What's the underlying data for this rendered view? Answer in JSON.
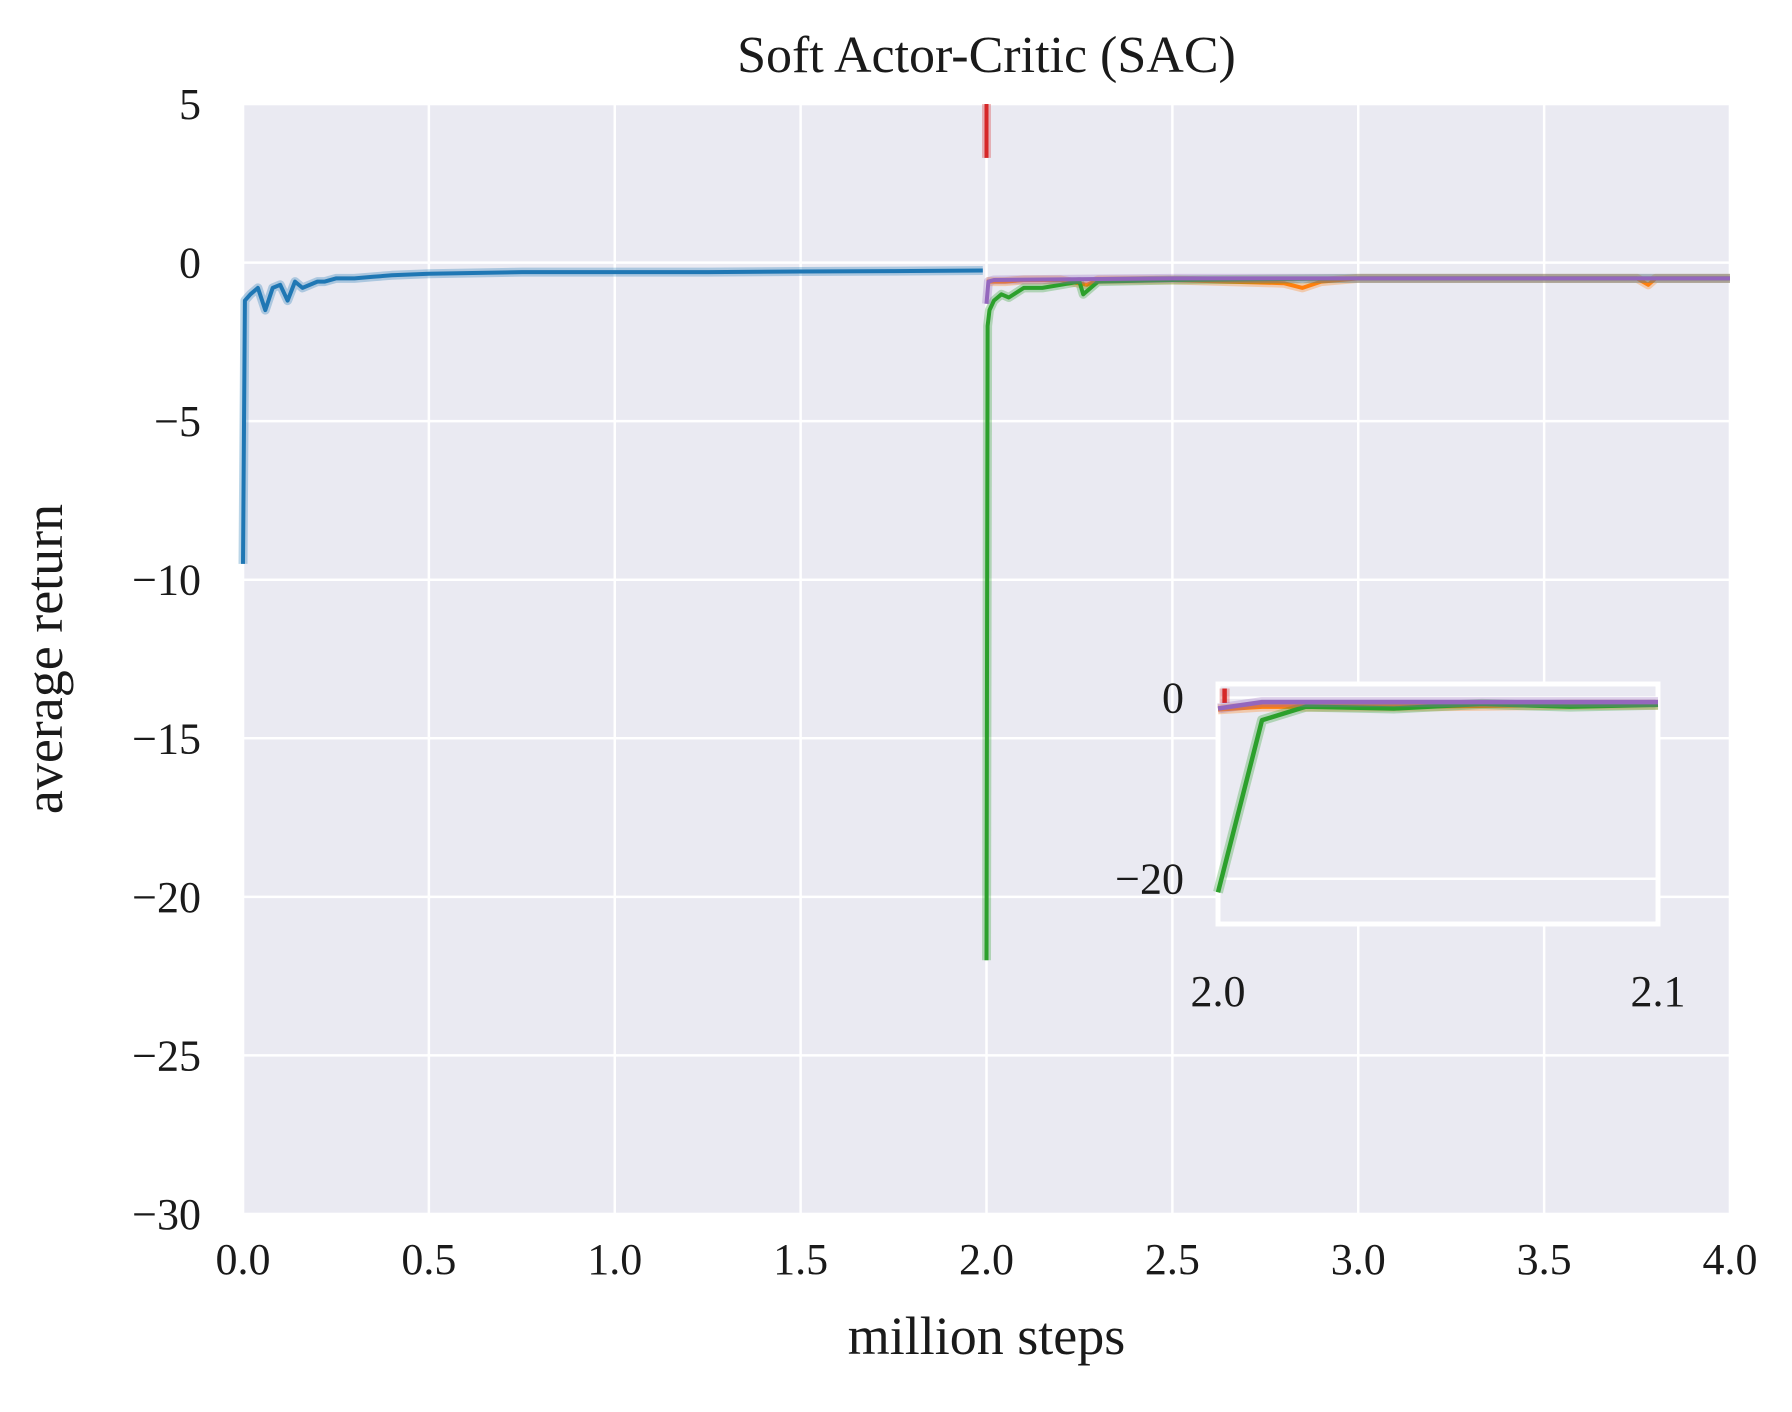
{
  "chart_data": {
    "type": "line",
    "title": "Soft Actor-Critic (SAC)",
    "xlabel": "million steps",
    "ylabel": "average return",
    "xlim": [
      0,
      4
    ],
    "ylim": [
      -30,
      5
    ],
    "xticks": [
      0.0,
      0.5,
      1.0,
      1.5,
      2.0,
      2.5,
      3.0,
      3.5,
      4.0
    ],
    "xtick_labels": [
      "0.0",
      "0.5",
      "1.0",
      "1.5",
      "2.0",
      "2.5",
      "3.0",
      "3.5",
      "4.0"
    ],
    "yticks": [
      5,
      0,
      -5,
      -10,
      -15,
      -20,
      -25,
      -30
    ],
    "ytick_labels": [
      "5",
      "0",
      "−5",
      "−10",
      "−15",
      "−20",
      "−25",
      "−30"
    ],
    "grid": true,
    "legend": "none",
    "background": "#eaeaf2",
    "series": [
      {
        "color": "#1f77b4",
        "x": [
          0.0,
          0.005,
          0.02,
          0.04,
          0.06,
          0.08,
          0.1,
          0.12,
          0.14,
          0.16,
          0.2,
          0.22,
          0.25,
          0.3,
          0.35,
          0.4,
          0.5,
          0.75,
          1.0,
          1.25,
          1.5,
          1.75,
          1.99
        ],
        "y": [
          -9.5,
          -1.2,
          -1.0,
          -0.8,
          -1.5,
          -0.8,
          -0.7,
          -1.2,
          -0.6,
          -0.8,
          -0.6,
          -0.6,
          -0.5,
          -0.5,
          -0.45,
          -0.4,
          -0.35,
          -0.3,
          -0.3,
          -0.3,
          -0.28,
          -0.27,
          -0.25
        ]
      },
      {
        "color": "#ff7f0e",
        "x": [
          2.0,
          2.02,
          2.05,
          2.1,
          2.2,
          2.27,
          2.3,
          2.5,
          2.8,
          2.85,
          2.9,
          3.0,
          3.5,
          3.75,
          3.78,
          3.8,
          4.0
        ],
        "y": [
          -0.6,
          -0.6,
          -0.6,
          -0.55,
          -0.55,
          -0.7,
          -0.55,
          -0.55,
          -0.65,
          -0.8,
          -0.6,
          -0.5,
          -0.5,
          -0.5,
          -0.7,
          -0.5,
          -0.5
        ]
      },
      {
        "color": "#2ca02c",
        "x": [
          2.0,
          2.003,
          2.008,
          2.02,
          2.04,
          2.06,
          2.1,
          2.15,
          2.2,
          2.25,
          2.26,
          2.3,
          2.5,
          3.0,
          3.5,
          4.0
        ],
        "y": [
          -22.0,
          -2.0,
          -1.5,
          -1.2,
          -1.0,
          -1.1,
          -0.8,
          -0.8,
          -0.7,
          -0.6,
          -1.0,
          -0.6,
          -0.55,
          -0.5,
          -0.5,
          -0.5
        ]
      },
      {
        "color": "#d62728",
        "x": [
          2.0,
          2.0001
        ],
        "y": [
          5.0,
          3.3
        ]
      },
      {
        "color": "#9467bd",
        "x": [
          2.0,
          2.005,
          2.02,
          2.5,
          3.0,
          3.5,
          4.0
        ],
        "y": [
          -1.3,
          -0.6,
          -0.55,
          -0.5,
          -0.5,
          -0.5,
          -0.5
        ]
      }
    ],
    "inset": {
      "xlim": [
        2.0,
        2.1
      ],
      "ylim": [
        -25,
        1.5
      ],
      "xtick_labels": [
        "2.0",
        "2.1"
      ],
      "ytick_labels": [
        "0",
        "−20"
      ],
      "yticks": [
        0,
        -20
      ],
      "series": [
        {
          "color": "#ff7f0e",
          "x": [
            2.0,
            2.01,
            2.02,
            2.04,
            2.06,
            2.08,
            2.1
          ],
          "y": [
            -1.3,
            -1.0,
            -1.0,
            -1.0,
            -0.9,
            -0.8,
            -0.8
          ]
        },
        {
          "color": "#2ca02c",
          "x": [
            2.0,
            2.01,
            2.02,
            2.04,
            2.06,
            2.08,
            2.1
          ],
          "y": [
            -21.5,
            -2.5,
            -1.0,
            -1.2,
            -0.7,
            -1.0,
            -0.8
          ]
        },
        {
          "color": "#d62728",
          "x": [
            2.0015,
            2.0015
          ],
          "y": [
            1.0,
            -0.6
          ]
        },
        {
          "color": "#9467bd",
          "x": [
            2.0,
            2.01,
            2.02,
            2.04,
            2.06,
            2.08,
            2.1
          ],
          "y": [
            -1.2,
            -0.5,
            -0.5,
            -0.5,
            -0.5,
            -0.5,
            -0.5
          ]
        }
      ]
    }
  }
}
